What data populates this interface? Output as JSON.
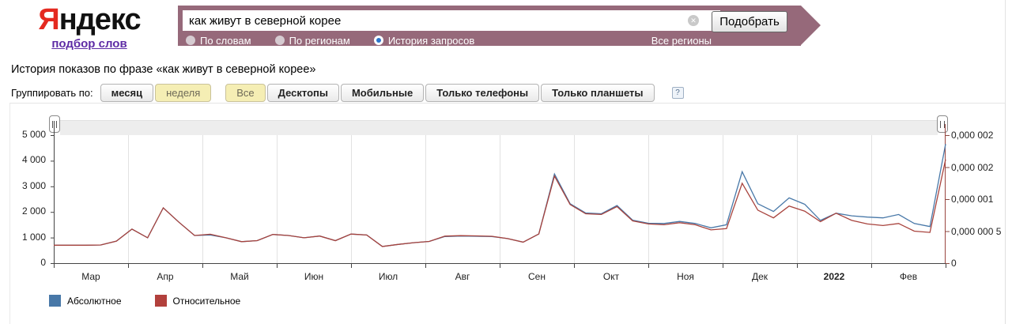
{
  "header": {
    "logo_first_letter": "Я",
    "logo_rest": "ндекс",
    "logo_link": "подбор слов"
  },
  "search": {
    "value": "как живут в северной корее",
    "clear_icon": "✕",
    "button_label": "Подобрать",
    "radios": [
      {
        "label": "По словам",
        "selected": false
      },
      {
        "label": "По регионам",
        "selected": false
      },
      {
        "label": "История запросов",
        "selected": true
      }
    ],
    "region_link": "Все регионы"
  },
  "main": {
    "title": "История показов по фразе «как живут в северной корее»",
    "group_label": "Группировать по:",
    "group_buttons": [
      {
        "label": "месяц",
        "selected": false
      },
      {
        "label": "неделя",
        "selected": true
      }
    ],
    "device_buttons": [
      {
        "label": "Все",
        "selected": true
      },
      {
        "label": "Десктопы",
        "selected": false
      },
      {
        "label": "Мобильные",
        "selected": false
      },
      {
        "label": "Только телефоны",
        "selected": false
      },
      {
        "label": "Только планшеты",
        "selected": false
      }
    ],
    "help_icon": "?"
  },
  "chart_data": {
    "type": "line",
    "title": "История показов по фразе «как живут в северной корее»",
    "x_unit": "week",
    "x_months": [
      "Мар",
      "Апр",
      "Май",
      "Июн",
      "Июл",
      "Авг",
      "Сен",
      "Окт",
      "Ноя",
      "Дек",
      "2022",
      "Фев"
    ],
    "x_bold_label": "2022",
    "y_left": {
      "ticks": [
        "5 000",
        "4 000",
        "3 000",
        "2 000",
        "1 000",
        "0"
      ],
      "min": 0,
      "max": 5000
    },
    "y_right": {
      "ticks": [
        "0,000 002",
        "0,000 002",
        "0,000 001",
        "0,000 000 5",
        "0"
      ],
      "min": 0,
      "max": 2e-06
    },
    "grid": "vertical-monthly",
    "legend_position": "bottom-left",
    "series": [
      {
        "name": "Абсолютное",
        "axis": "left",
        "color": "#4878A8",
        "values": [
          700,
          700,
          700,
          710,
          860,
          1330,
          990,
          2160,
          1600,
          1080,
          1100,
          990,
          840,
          880,
          1120,
          1080,
          990,
          1060,
          880,
          1135,
          1100,
          650,
          730,
          800,
          850,
          1040,
          1060,
          1050,
          1040,
          960,
          820,
          1140,
          3480,
          2320,
          1960,
          1930,
          2250,
          1680,
          1560,
          1550,
          1630,
          1550,
          1380,
          1500,
          3570,
          2320,
          2020,
          2550,
          2300,
          1670,
          1950,
          1850,
          1800,
          1770,
          1900,
          1550,
          1430,
          4650
        ]
      },
      {
        "name": "Относительное",
        "axis": "right",
        "color": "#A8433D",
        "right_value_per_left_unit": 4e-10,
        "values": [
          700,
          700,
          700,
          710,
          860,
          1330,
          990,
          2160,
          1600,
          1080,
          1130,
          990,
          840,
          880,
          1120,
          1080,
          990,
          1060,
          880,
          1135,
          1100,
          650,
          730,
          800,
          850,
          1055,
          1075,
          1065,
          1050,
          960,
          820,
          1140,
          3400,
          2290,
          1930,
          1900,
          2210,
          1650,
          1530,
          1500,
          1580,
          1500,
          1300,
          1350,
          3120,
          2070,
          1770,
          2230,
          2030,
          1620,
          1950,
          1670,
          1530,
          1470,
          1550,
          1250,
          1200,
          4050
        ]
      }
    ]
  },
  "legend": [
    {
      "label": "Абсолютное",
      "color": "#4878A8"
    },
    {
      "label": "Относительное",
      "color": "#B2403C"
    }
  ]
}
